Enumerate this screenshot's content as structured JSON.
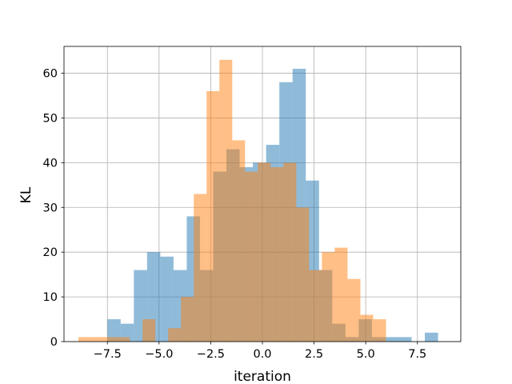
{
  "chart_data": {
    "type": "histogram",
    "title": "",
    "xlabel": "iteration",
    "ylabel": "KL",
    "xlim": [
      -9.6,
      9.6
    ],
    "ylim": [
      0,
      66
    ],
    "x_ticks": [
      -7.5,
      -5.0,
      -2.5,
      0.0,
      2.5,
      5.0,
      7.5
    ],
    "x_tick_labels": [
      "−7.5",
      "−5.0",
      "−2.5",
      "0.0",
      "2.5",
      "5.0",
      "7.5"
    ],
    "y_ticks": [
      0,
      10,
      20,
      30,
      40,
      50,
      60
    ],
    "y_tick_labels": [
      "0",
      "10",
      "20",
      "30",
      "40",
      "50",
      "60"
    ],
    "grid": true,
    "legend": "none",
    "series": [
      {
        "color": "#1f77b4",
        "opacity": 0.5,
        "bin_edges": [
          -7.5,
          -6.86,
          -6.22,
          -5.58,
          -4.94,
          -4.3,
          -3.66,
          -3.02,
          -2.38,
          -1.74,
          -1.1,
          -0.46,
          0.18,
          0.82,
          1.46,
          2.1,
          2.74,
          3.38,
          4.02,
          4.66,
          5.3,
          5.94,
          6.58,
          7.22,
          7.86,
          8.5
        ],
        "counts": [
          5,
          4,
          16,
          20,
          19,
          16,
          28,
          16,
          38,
          43,
          39,
          40,
          44,
          58,
          61,
          36,
          16,
          4,
          1,
          5,
          1,
          1,
          1,
          0,
          2
        ]
      },
      {
        "color": "#ff7f0e",
        "opacity": 0.5,
        "bin_edges": [
          -8.9,
          -8.28,
          -7.66,
          -7.04,
          -6.42,
          -5.8,
          -5.18,
          -4.56,
          -3.94,
          -3.32,
          -2.7,
          -2.08,
          -1.46,
          -0.84,
          -0.22,
          0.4,
          1.02,
          1.64,
          2.26,
          2.88,
          3.5,
          4.12,
          4.74,
          5.36,
          5.98,
          6.6
        ],
        "counts": [
          1,
          1,
          1,
          1,
          0,
          5,
          0,
          3,
          10,
          33,
          56,
          63,
          45,
          38,
          40,
          39,
          40,
          30,
          16,
          20,
          21,
          14,
          6,
          5,
          0
        ]
      }
    ]
  }
}
